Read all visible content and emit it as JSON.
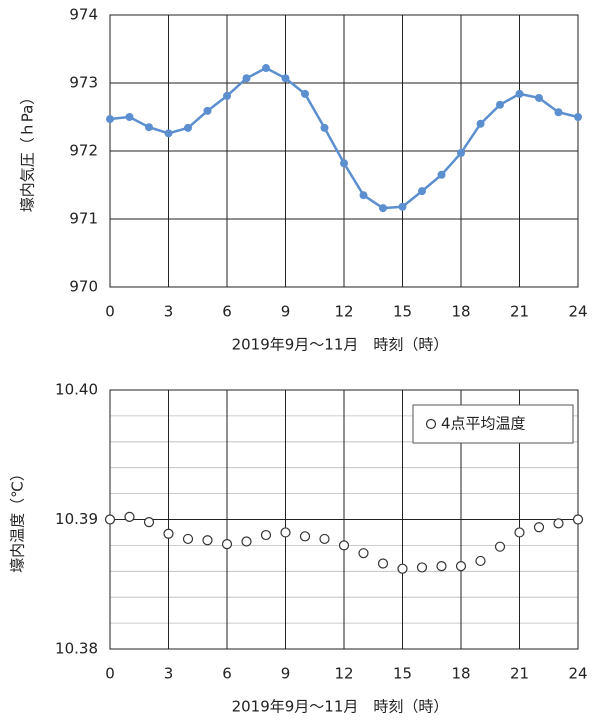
{
  "chart_data": [
    {
      "type": "line",
      "x_label": "2019年9月～11月　時刻（時）",
      "y_label": "壕内気圧（ｈPa）",
      "x": [
        0,
        1,
        2,
        3,
        4,
        5,
        6,
        7,
        8,
        9,
        10,
        11,
        12,
        13,
        14,
        15,
        16,
        17,
        18,
        19,
        20,
        21,
        22,
        23,
        24
      ],
      "series": [
        {
          "color": "#5b8fd0",
          "values": [
            972.47,
            972.5,
            972.35,
            972.26,
            972.34,
            972.59,
            972.81,
            973.07,
            973.22,
            973.07,
            972.84,
            972.34,
            971.82,
            971.35,
            971.16,
            971.18,
            971.41,
            971.65,
            971.97,
            972.4,
            972.68,
            972.84,
            972.78,
            972.57,
            972.5
          ]
        }
      ],
      "xlim": [
        0,
        24
      ],
      "xticks": [
        0,
        3,
        6,
        9,
        12,
        15,
        18,
        21,
        24
      ],
      "ylim": [
        970,
        974
      ],
      "yticks": [
        970,
        971,
        972,
        973,
        974
      ],
      "grid": true
    },
    {
      "type": "scatter",
      "x_label": "2019年9月～11月　時刻（時）",
      "y_label": "壕内温度（℃）",
      "x": [
        0,
        1,
        2,
        3,
        4,
        5,
        6,
        7,
        8,
        9,
        10,
        11,
        12,
        13,
        14,
        15,
        16,
        17,
        18,
        19,
        20,
        21,
        22,
        23,
        24
      ],
      "series": [
        {
          "name": "4点平均温度",
          "color": "#333333",
          "values": [
            10.39,
            10.3902,
            10.3898,
            10.3889,
            10.3885,
            10.3884,
            10.3881,
            10.3883,
            10.3888,
            10.389,
            10.3887,
            10.3885,
            10.388,
            10.3874,
            10.3866,
            10.3862,
            10.3863,
            10.3864,
            10.3864,
            10.3868,
            10.3879,
            10.389,
            10.3894,
            10.3897,
            10.39
          ]
        }
      ],
      "xlim": [
        0,
        24
      ],
      "xticks": [
        0,
        3,
        6,
        9,
        12,
        15,
        18,
        21,
        24
      ],
      "ylim": [
        10.38,
        10.4
      ],
      "yticks": [
        10.38,
        10.39,
        {
          "value": 10.4,
          "label": "10.40"
        }
      ],
      "minor_yticks": [
        10.382,
        10.384,
        10.386,
        10.388,
        10.392,
        10.394,
        10.396,
        10.398
      ],
      "grid": true,
      "legend": "top-right"
    }
  ]
}
